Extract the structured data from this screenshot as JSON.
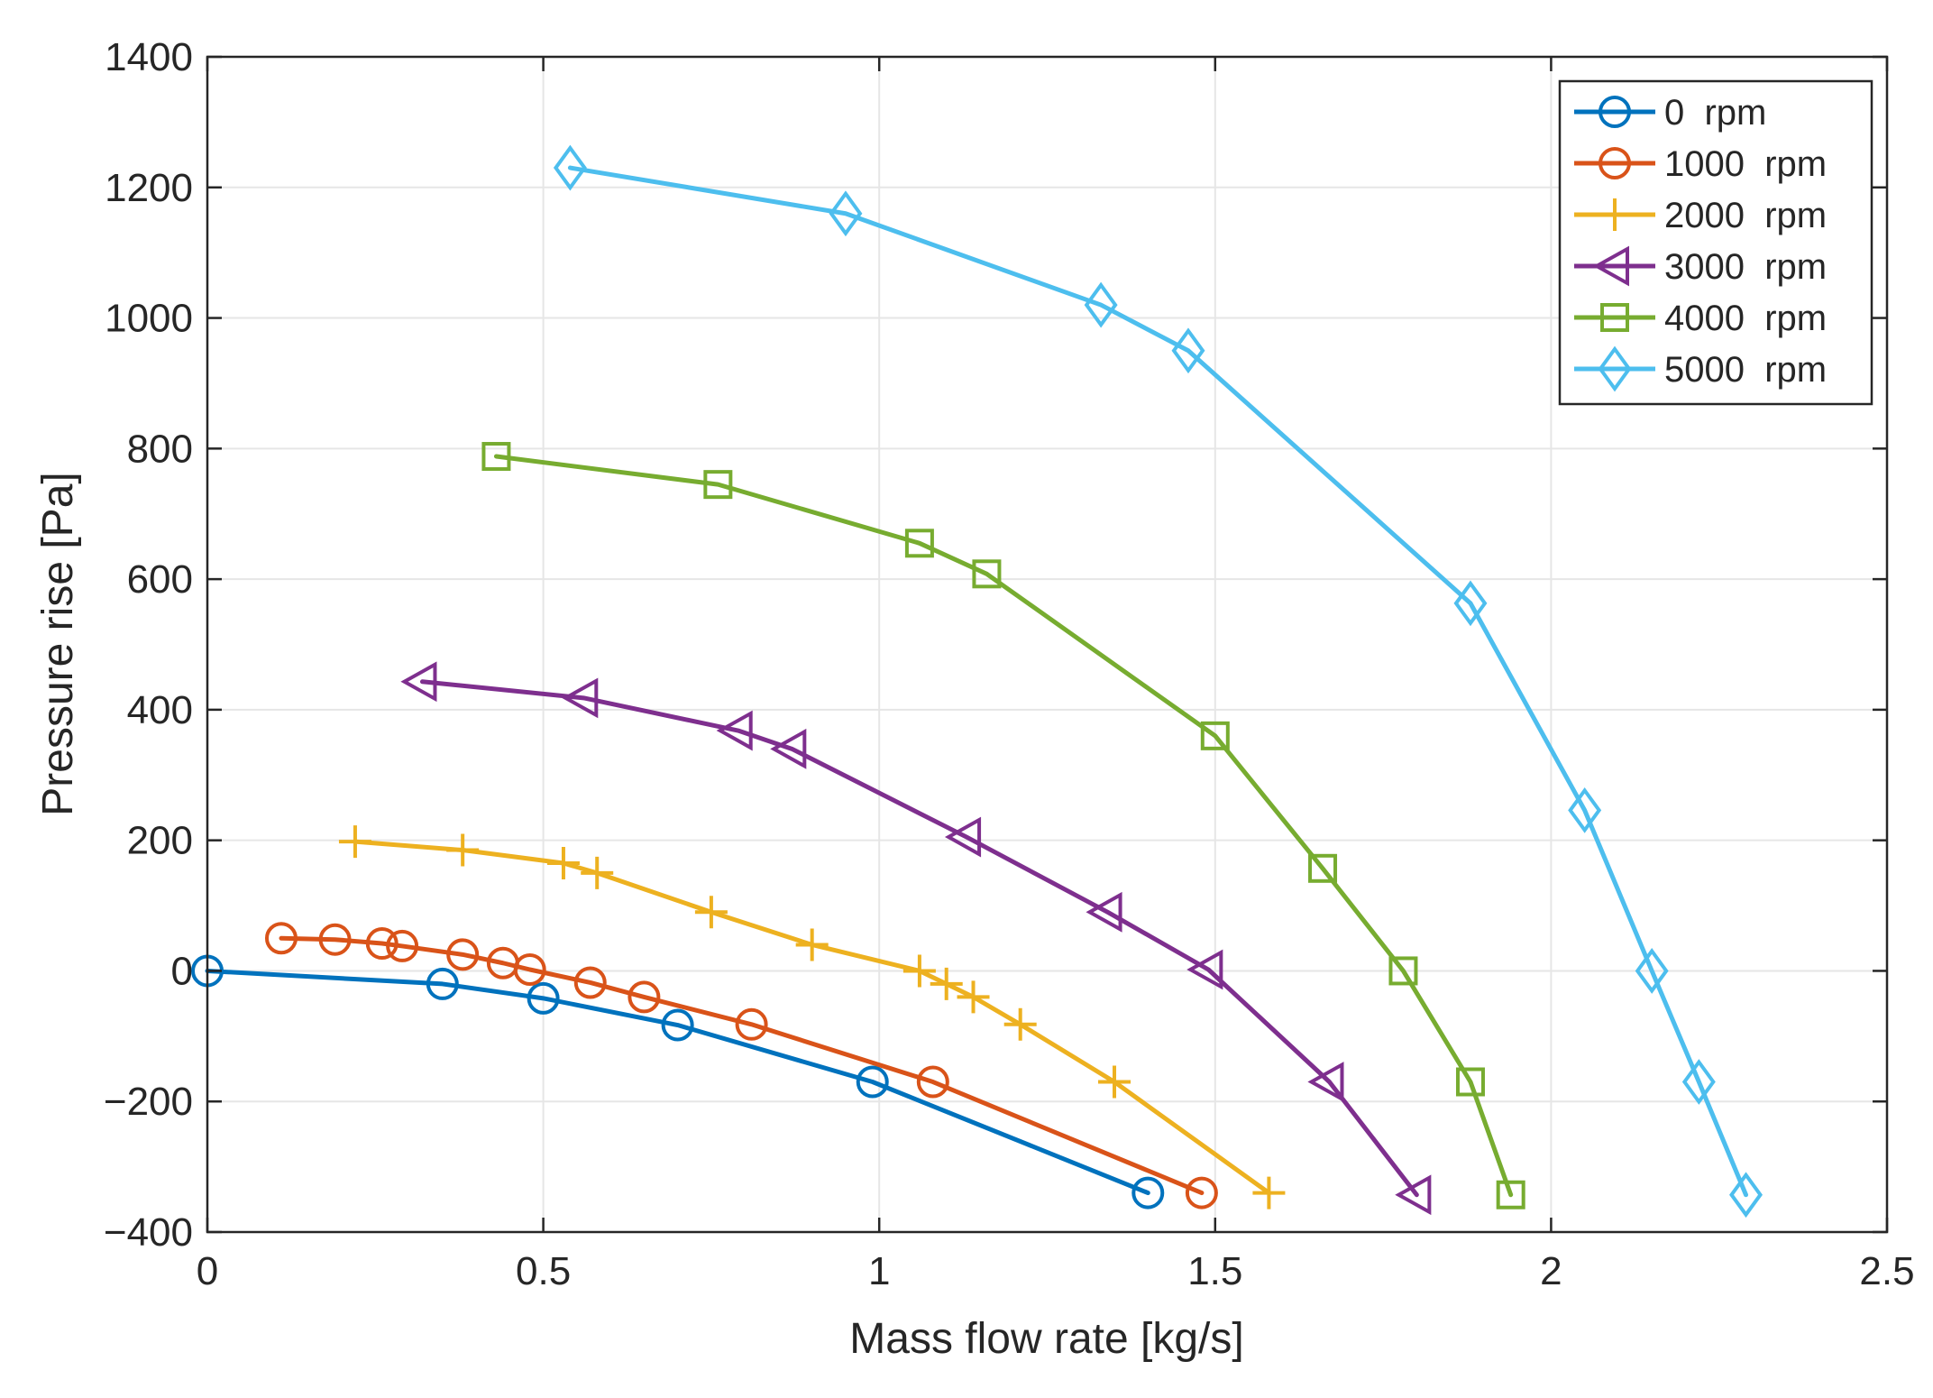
{
  "chart_data": {
    "type": "line",
    "title": "",
    "xlabel": "Mass flow rate [kg/s]",
    "ylabel": "Pressure rise [Pa]",
    "xlim": [
      0,
      2.5
    ],
    "ylim": [
      -400,
      1400
    ],
    "xticks": [
      0,
      0.5,
      1,
      1.5,
      2,
      2.5
    ],
    "xtick_labels": [
      "0",
      "0.5",
      "1",
      "1.5",
      "2",
      "2.5"
    ],
    "yticks": [
      -400,
      -200,
      0,
      200,
      400,
      600,
      800,
      1000,
      1200,
      1400
    ],
    "ytick_labels": [
      "−400",
      "−200",
      "0",
      "200",
      "400",
      "600",
      "800",
      "1000",
      "1200",
      "1400"
    ],
    "grid": true,
    "legend_position": "top-right",
    "series": [
      {
        "name": "0  rpm",
        "color": "#0072BD",
        "marker": "circle",
        "x": [
          0,
          0.35,
          0.5,
          0.7,
          0.99,
          1.4
        ],
        "y": [
          0,
          -20,
          -42,
          -83,
          -170,
          -340
        ]
      },
      {
        "name": "1000  rpm",
        "color": "#D95319",
        "marker": "circle",
        "x": [
          0.11,
          0.19,
          0.26,
          0.29,
          0.38,
          0.44,
          0.48,
          0.57,
          0.65,
          0.81,
          1.08,
          1.48
        ],
        "y": [
          50,
          48,
          42,
          38,
          25,
          12,
          2,
          -18,
          -40,
          -82,
          -170,
          -340
        ]
      },
      {
        "name": "2000  rpm",
        "color": "#EDB120",
        "marker": "plus",
        "x": [
          0.22,
          0.38,
          0.53,
          0.58,
          0.75,
          0.9,
          1.06,
          1.1,
          1.14,
          1.21,
          1.35,
          1.58
        ],
        "y": [
          198,
          185,
          165,
          150,
          90,
          40,
          0,
          -20,
          -40,
          -82,
          -170,
          -340
        ]
      },
      {
        "name": "3000  rpm",
        "color": "#7E2F8E",
        "marker": "triangle-left",
        "x": [
          0.32,
          0.56,
          0.79,
          0.87,
          1.13,
          1.34,
          1.49,
          1.67,
          1.8
        ],
        "y": [
          443,
          418,
          368,
          340,
          205,
          90,
          2,
          -170,
          -343
        ]
      },
      {
        "name": "4000  rpm",
        "color": "#77AC30",
        "marker": "square",
        "x": [
          0.43,
          0.76,
          1.06,
          1.16,
          1.5,
          1.66,
          1.78,
          1.88,
          1.94
        ],
        "y": [
          788,
          745,
          655,
          608,
          360,
          157,
          0,
          -170,
          -343
        ]
      },
      {
        "name": "5000  rpm",
        "color": "#4DBEEE",
        "marker": "diamond",
        "x": [
          0.54,
          0.95,
          1.33,
          1.46,
          1.88,
          2.05,
          2.15,
          2.22,
          2.29
        ],
        "y": [
          1230,
          1160,
          1020,
          950,
          563,
          246,
          0,
          -170,
          -343
        ]
      }
    ]
  }
}
